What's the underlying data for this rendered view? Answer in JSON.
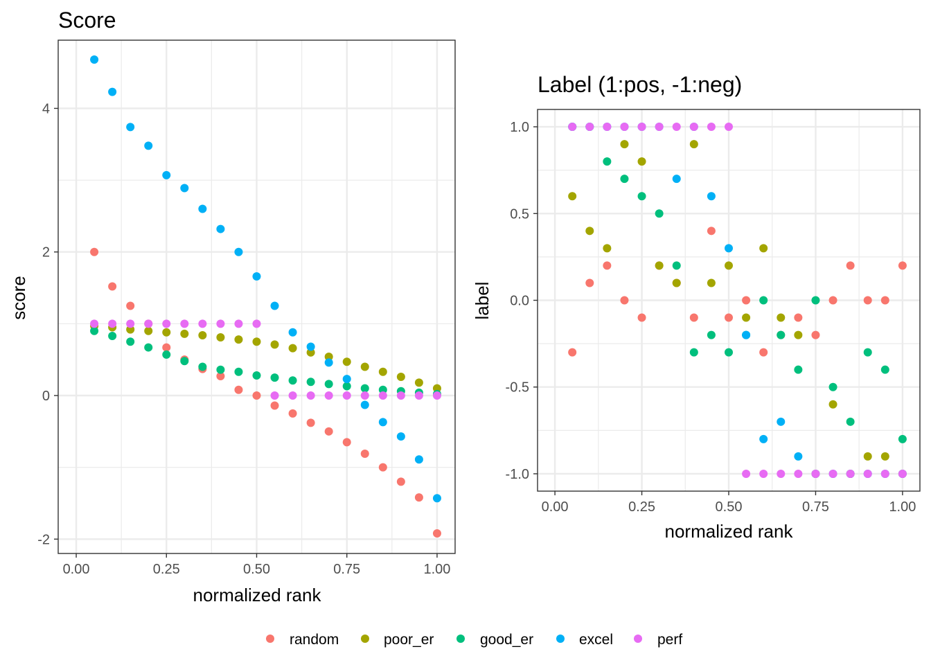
{
  "colors": {
    "random": "#F8766D",
    "poor_er": "#A3A500",
    "good_er": "#00BF7D",
    "excel": "#00B0F6",
    "perf": "#E76BF3"
  },
  "legend": [
    "random",
    "poor_er",
    "good_er",
    "excel",
    "perf"
  ],
  "chart_data": [
    {
      "type": "scatter",
      "title": "Score",
      "xlabel": "normalized rank",
      "ylabel": "score",
      "xlim": [
        -0.05,
        1.05
      ],
      "ylim": [
        -2.2,
        4.95
      ],
      "x_ticks": [
        0,
        0.25,
        0.5,
        0.75,
        1
      ],
      "x_tick_labels": [
        "0.00",
        "0.25",
        "0.50",
        "0.75",
        "1.00"
      ],
      "y_ticks": [
        -2,
        0,
        2,
        4
      ],
      "y_tick_labels": [
        "-2",
        "0",
        "2",
        "4"
      ],
      "grid": true,
      "x": [
        0.05,
        0.1,
        0.15,
        0.2,
        0.25,
        0.3,
        0.35,
        0.4,
        0.45,
        0.5,
        0.55,
        0.6,
        0.65,
        0.7,
        0.75,
        0.8,
        0.85,
        0.9,
        0.95,
        1.0
      ],
      "series": [
        {
          "name": "random",
          "values": [
            2.0,
            1.52,
            1.25,
            1.0,
            0.67,
            0.5,
            0.37,
            0.27,
            0.08,
            0.0,
            -0.14,
            -0.25,
            -0.38,
            -0.5,
            -0.65,
            -0.81,
            -1.0,
            -1.2,
            -1.42,
            -1.92
          ]
        },
        {
          "name": "poor_er",
          "values": [
            0.97,
            0.95,
            0.92,
            0.9,
            0.88,
            0.86,
            0.84,
            0.81,
            0.78,
            0.75,
            0.71,
            0.66,
            0.6,
            0.54,
            0.47,
            0.4,
            0.33,
            0.26,
            0.18,
            0.1
          ]
        },
        {
          "name": "good_er",
          "values": [
            0.9,
            0.83,
            0.75,
            0.67,
            0.57,
            0.48,
            0.4,
            0.36,
            0.33,
            0.28,
            0.25,
            0.21,
            0.19,
            0.16,
            0.13,
            0.1,
            0.08,
            0.06,
            0.04,
            0.02
          ]
        },
        {
          "name": "excel",
          "values": [
            4.68,
            4.23,
            3.74,
            3.48,
            3.07,
            2.89,
            2.6,
            2.32,
            2.0,
            1.66,
            1.25,
            0.88,
            0.68,
            0.46,
            0.23,
            -0.13,
            -0.37,
            -0.57,
            -0.89,
            -1.43
          ]
        },
        {
          "name": "perf",
          "values": [
            1.0,
            1.0,
            1.0,
            1.0,
            1.0,
            1.0,
            1.0,
            1.0,
            1.0,
            1.0,
            0.0,
            0.0,
            0.0,
            0.0,
            0.0,
            0.0,
            0.0,
            0.0,
            0.0,
            0.0
          ]
        }
      ]
    },
    {
      "type": "scatter",
      "title": "Label (1:pos, -1:neg)",
      "xlabel": "normalized rank",
      "ylabel": "label",
      "xlim": [
        -0.05,
        1.05
      ],
      "ylim": [
        -1.1,
        1.1
      ],
      "x_ticks": [
        0,
        0.25,
        0.5,
        0.75,
        1
      ],
      "x_tick_labels": [
        "0.00",
        "0.25",
        "0.50",
        "0.75",
        "1.00"
      ],
      "y_ticks": [
        -1,
        -0.5,
        0,
        0.5,
        1
      ],
      "y_tick_labels": [
        "-1.0",
        "-0.5",
        "0.0",
        "0.5",
        "1.0"
      ],
      "grid": true,
      "x": [
        0.05,
        0.1,
        0.15,
        0.2,
        0.25,
        0.3,
        0.35,
        0.4,
        0.45,
        0.5,
        0.55,
        0.6,
        0.65,
        0.7,
        0.75,
        0.8,
        0.85,
        0.9,
        0.95,
        1.0
      ],
      "series": [
        {
          "name": "random",
          "values": [
            -0.3,
            0.1,
            0.2,
            0.0,
            -0.1,
            0.2,
            0.1,
            -0.1,
            0.4,
            -0.1,
            0.0,
            -0.3,
            -0.2,
            -0.1,
            -0.2,
            0.0,
            0.2,
            0.0,
            0.0,
            0.2
          ]
        },
        {
          "name": "poor_er",
          "values": [
            0.6,
            0.4,
            0.3,
            0.9,
            0.8,
            0.2,
            0.1,
            0.9,
            0.1,
            0.2,
            -0.1,
            0.3,
            -0.1,
            -0.2,
            -1.0,
            -0.6,
            -1.0,
            -0.9,
            -0.9,
            -1.0
          ]
        },
        {
          "name": "good_er",
          "values": [
            1.0,
            1.0,
            0.8,
            0.7,
            0.6,
            0.5,
            0.2,
            -0.3,
            -0.2,
            -0.3,
            -0.2,
            0.0,
            -0.2,
            -0.4,
            0.0,
            -0.5,
            -0.7,
            -0.3,
            -0.4,
            -0.8
          ]
        },
        {
          "name": "excel",
          "values": [
            1.0,
            1.0,
            1.0,
            1.0,
            1.0,
            1.0,
            0.7,
            1.0,
            0.6,
            0.3,
            -0.2,
            -0.8,
            -0.7,
            -0.9,
            -1.0,
            -1.0,
            -1.0,
            -1.0,
            -1.0,
            -1.0
          ]
        },
        {
          "name": "perf",
          "values": [
            1.0,
            1.0,
            1.0,
            1.0,
            1.0,
            1.0,
            1.0,
            1.0,
            1.0,
            1.0,
            -1.0,
            -1.0,
            -1.0,
            -1.0,
            -1.0,
            -1.0,
            -1.0,
            -1.0,
            -1.0,
            -1.0
          ]
        }
      ]
    }
  ]
}
